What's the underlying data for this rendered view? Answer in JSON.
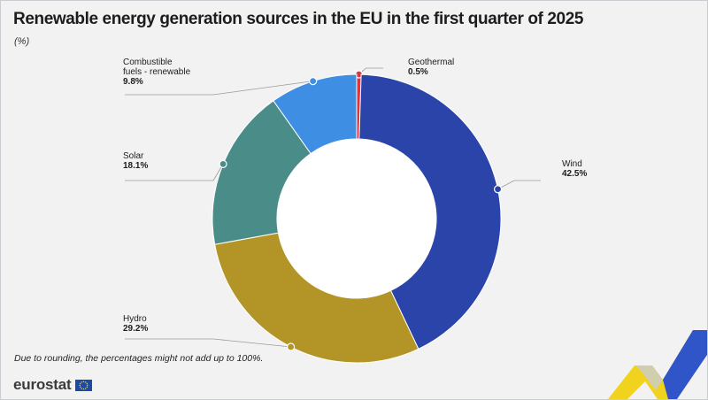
{
  "header": {
    "title": "Renewable energy generation sources in the EU in the first quarter of  2025",
    "unit": "(%)"
  },
  "footnote": "Due to rounding, the percentages might not add up to 100%.",
  "logo": {
    "text": "eurostat",
    "icon": "eu-flag-icon"
  },
  "chart_data": {
    "type": "pie",
    "variant": "donut",
    "title": "Renewable energy generation sources in the EU in the first quarter of  2025",
    "unit": "(%)",
    "slices": [
      {
        "label_lines": [
          "Geothermal"
        ],
        "value_text": "0.5%",
        "value": 0.5,
        "color": "#d8373e"
      },
      {
        "label_lines": [
          "Wind"
        ],
        "value_text": "42.5%",
        "value": 42.5,
        "color": "#2a44a9"
      },
      {
        "label_lines": [
          "Hydro"
        ],
        "value_text": "29.2%",
        "value": 29.2,
        "color": "#b29526"
      },
      {
        "label_lines": [
          "Solar"
        ],
        "value_text": "18.1%",
        "value": 18.1,
        "color": "#4a8c88"
      },
      {
        "label_lines": [
          "Combustible",
          "fuels - renewable"
        ],
        "value_text": "9.8%",
        "value": 9.8,
        "color": "#3e8ee3"
      }
    ]
  }
}
